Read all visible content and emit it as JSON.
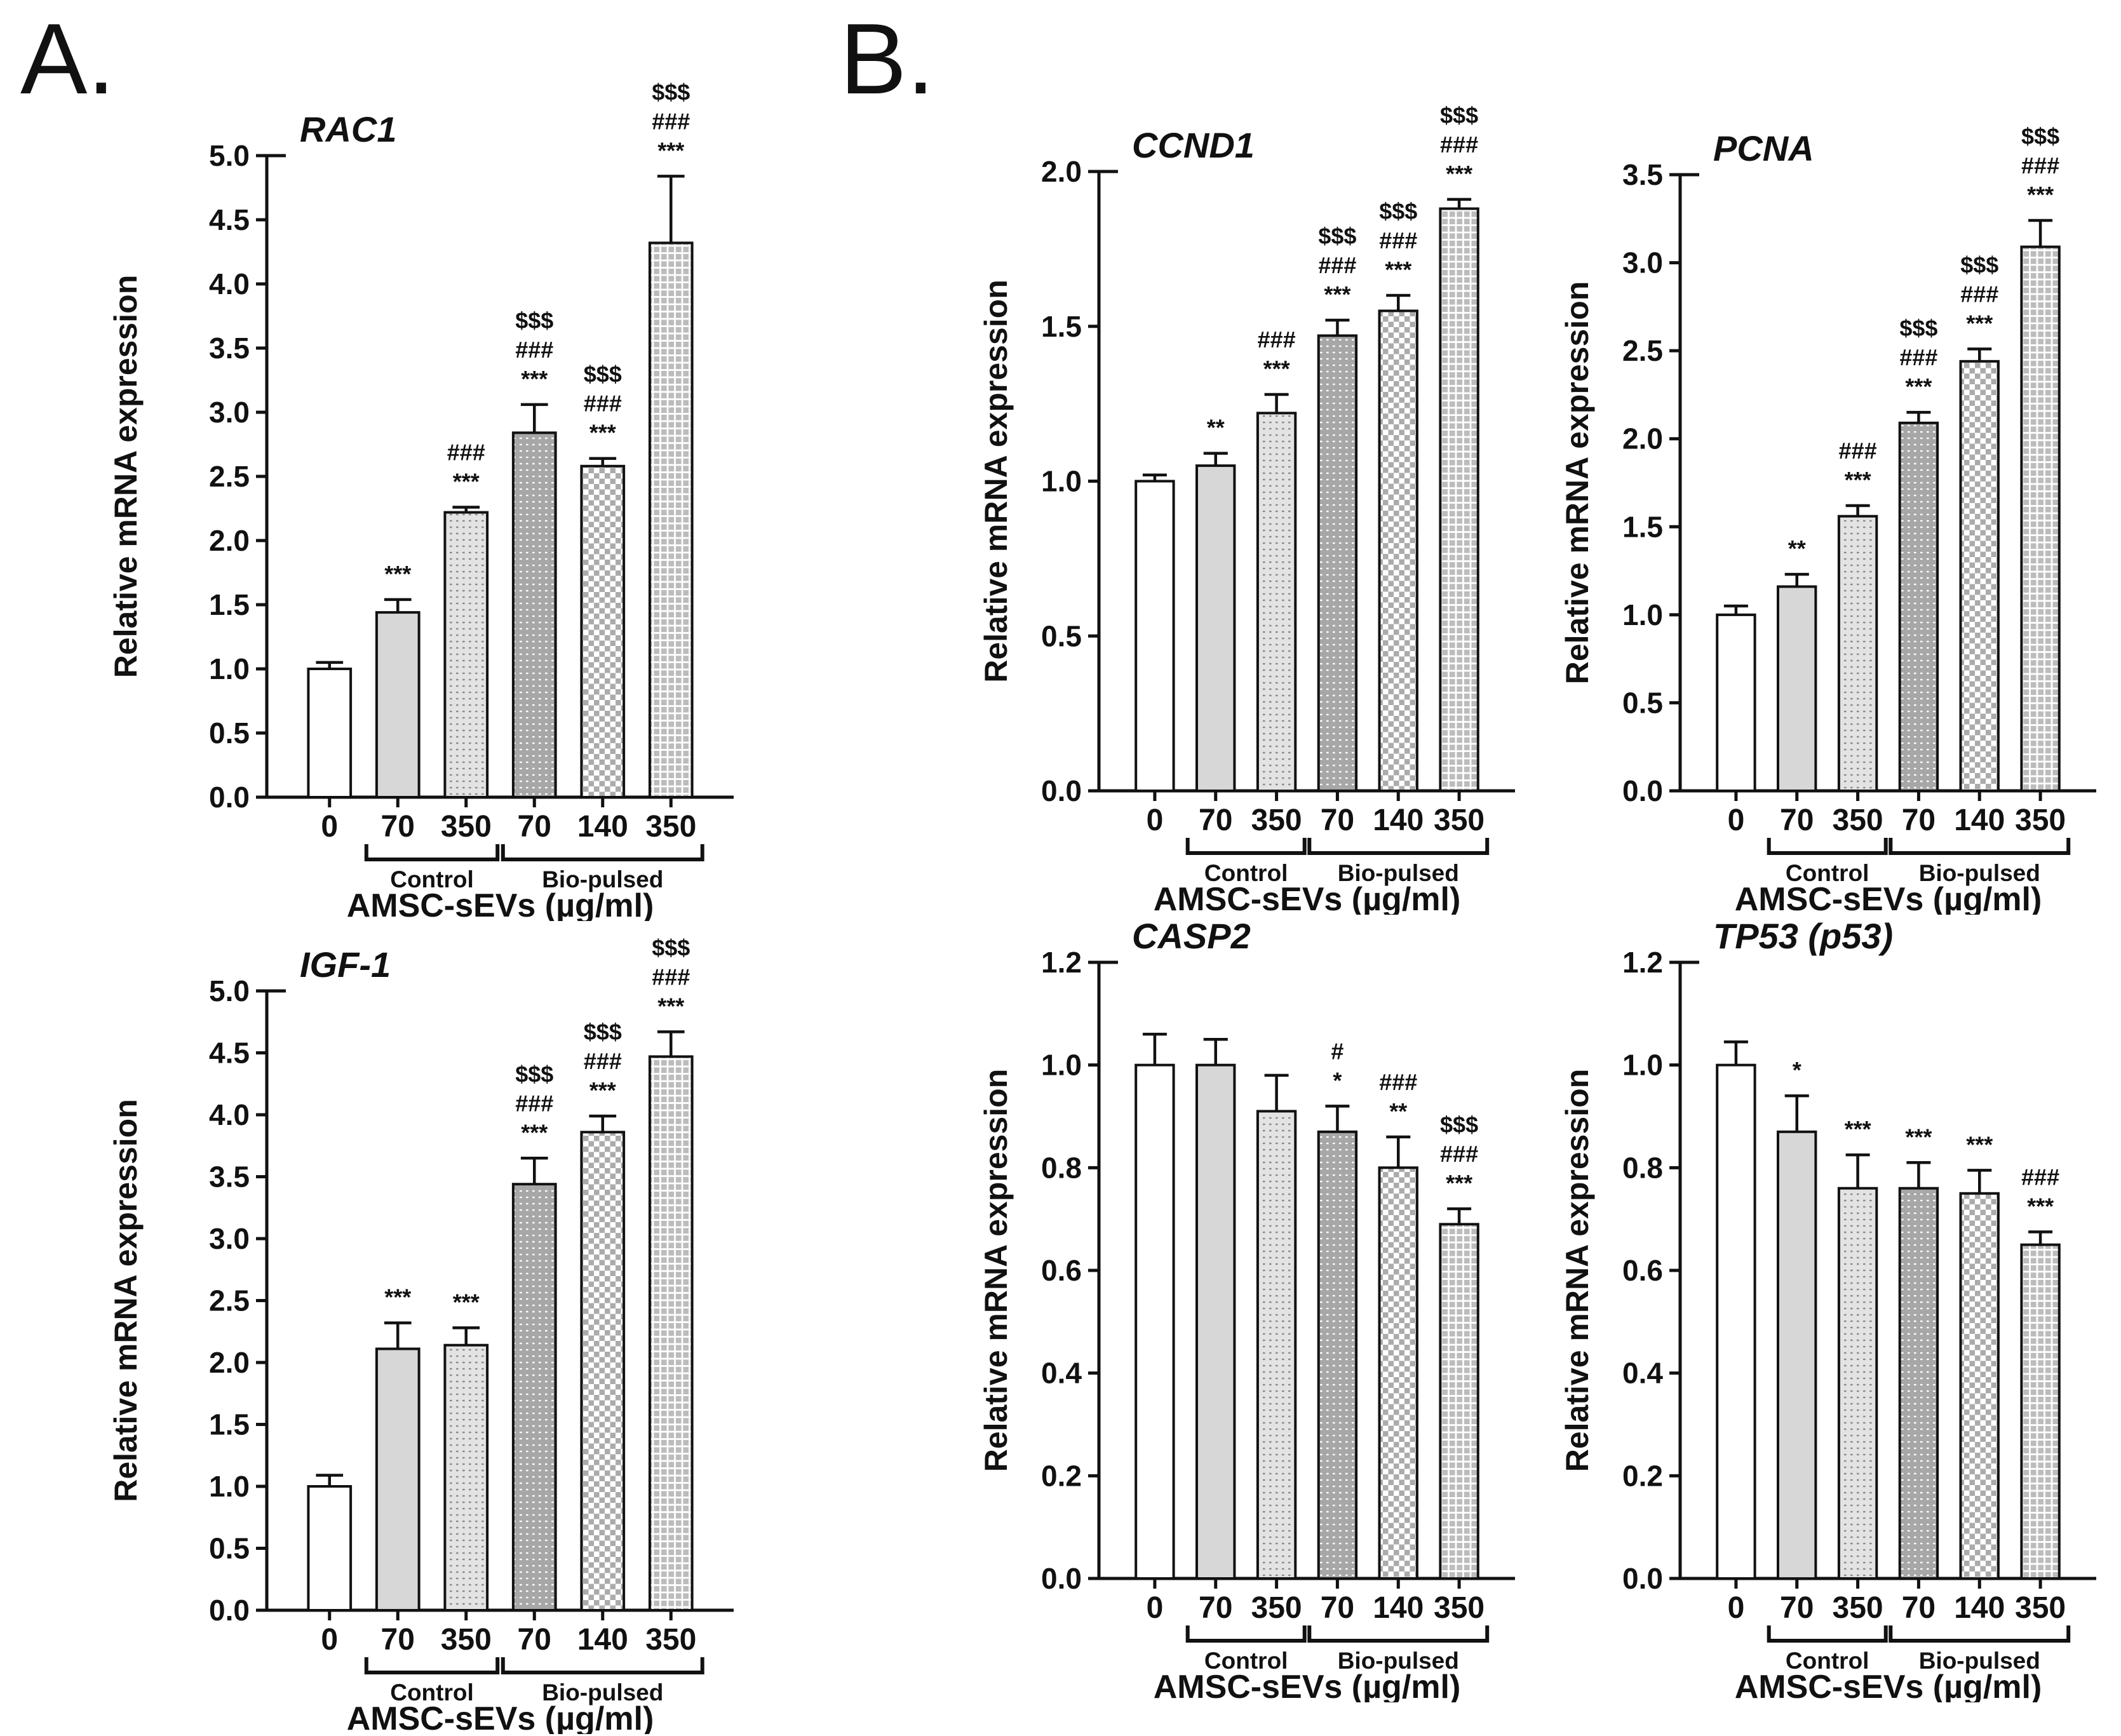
{
  "figure": {
    "panel_a_label": "A.",
    "panel_b_label": "B.",
    "ylabel": "Relative mRNA expression",
    "xlabel": "AMSC-sEVs (µg/ml)",
    "categories": [
      "0",
      "70",
      "350",
      "70",
      "140",
      "350"
    ],
    "groups": [
      {
        "label": "Control",
        "from": 1,
        "to": 2
      },
      {
        "label": "Bio-pulsed",
        "from": 3,
        "to": 5
      }
    ],
    "bar_patterns": [
      "white",
      "solid-light",
      "dots-light",
      "dots-dark",
      "checker",
      "grid"
    ],
    "colors": {
      "ink": "#111111",
      "bar_solid_light": "#d7d7d7",
      "bar_dot_light_bg": "#e3e3e3",
      "bar_dot_light_dot": "#8a8a8a",
      "bar_dot_dark_bg": "#a7a7a7",
      "bar_checker_gray": "#ababab",
      "bar_grid_gray": "#bcbcbc"
    }
  },
  "chart_data": [
    {
      "id": "rac1",
      "panel": "A",
      "type": "bar",
      "title": "RAC1",
      "ylabel": "Relative mRNA expression",
      "xlabel": "AMSC-sEVs (µg/ml)",
      "ylim": [
        0,
        5.0
      ],
      "ytick": 0.5,
      "grid": false,
      "categories": [
        "0",
        "70",
        "350",
        "70",
        "140",
        "350"
      ],
      "values": [
        1.0,
        1.44,
        2.22,
        2.84,
        2.58,
        4.32
      ],
      "errors": [
        0.05,
        0.1,
        0.04,
        0.22,
        0.06,
        0.52
      ],
      "sig": [
        [],
        [
          "***"
        ],
        [
          "###",
          "***"
        ],
        [
          "$$$",
          "###",
          "***"
        ],
        [
          "$$$",
          "###",
          "***"
        ],
        [
          "$$$",
          "###",
          "***"
        ]
      ]
    },
    {
      "id": "igf1",
      "panel": "A",
      "type": "bar",
      "title": "IGF-1",
      "ylabel": "Relative mRNA expression",
      "xlabel": "AMSC-sEVs (µg/ml)",
      "ylim": [
        0,
        5.0
      ],
      "ytick": 0.5,
      "grid": false,
      "categories": [
        "0",
        "70",
        "350",
        "70",
        "140",
        "350"
      ],
      "values": [
        1.0,
        2.11,
        2.14,
        3.44,
        3.86,
        4.47
      ],
      "errors": [
        0.09,
        0.21,
        0.14,
        0.21,
        0.13,
        0.2
      ],
      "sig": [
        [],
        [
          "***"
        ],
        [
          "***"
        ],
        [
          "$$$",
          "###",
          "***"
        ],
        [
          "$$$",
          "###",
          "***"
        ],
        [
          "$$$",
          "###",
          "***"
        ]
      ]
    },
    {
      "id": "ccnd1",
      "panel": "B",
      "type": "bar",
      "title": "CCND1",
      "ylabel": "Relative mRNA expression",
      "xlabel": "AMSC-sEVs (µg/ml)",
      "ylim": [
        0,
        2.0
      ],
      "ytick": 0.5,
      "grid": false,
      "categories": [
        "0",
        "70",
        "350",
        "70",
        "140",
        "350"
      ],
      "values": [
        1.0,
        1.05,
        1.22,
        1.47,
        1.55,
        1.88
      ],
      "errors": [
        0.02,
        0.04,
        0.06,
        0.05,
        0.05,
        0.03
      ],
      "sig": [
        [],
        [
          "**"
        ],
        [
          "###",
          "***"
        ],
        [
          "$$$",
          "###",
          "***"
        ],
        [
          "$$$",
          "###",
          "***"
        ],
        [
          "$$$",
          "###",
          "***"
        ]
      ]
    },
    {
      "id": "pcna",
      "panel": "B",
      "type": "bar",
      "title": "PCNA",
      "ylabel": "Relative mRNA expression",
      "xlabel": "AMSC-sEVs (µg/ml)",
      "ylim": [
        0,
        3.5
      ],
      "ytick": 0.5,
      "grid": false,
      "categories": [
        "0",
        "70",
        "350",
        "70",
        "140",
        "350"
      ],
      "values": [
        1.0,
        1.16,
        1.56,
        2.09,
        2.44,
        3.09
      ],
      "errors": [
        0.05,
        0.07,
        0.06,
        0.06,
        0.07,
        0.15
      ],
      "sig": [
        [],
        [
          "**"
        ],
        [
          "###",
          "***"
        ],
        [
          "$$$",
          "###",
          "***"
        ],
        [
          "$$$",
          "###",
          "***"
        ],
        [
          "$$$",
          "###",
          "***"
        ]
      ]
    },
    {
      "id": "casp2",
      "panel": "B",
      "type": "bar",
      "title": "CASP2",
      "ylabel": "Relative mRNA expression",
      "xlabel": "AMSC-sEVs (µg/ml)",
      "ylim": [
        0,
        1.2
      ],
      "ytick": 0.2,
      "grid": false,
      "categories": [
        "0",
        "70",
        "350",
        "70",
        "140",
        "350"
      ],
      "values": [
        1.0,
        1.0,
        0.91,
        0.87,
        0.8,
        0.69
      ],
      "errors": [
        0.06,
        0.05,
        0.07,
        0.05,
        0.06,
        0.03
      ],
      "sig": [
        [],
        [],
        [],
        [
          "#",
          "*"
        ],
        [
          "###",
          "**"
        ],
        [
          "$$$",
          "###",
          "***"
        ]
      ]
    },
    {
      "id": "tp53",
      "panel": "B",
      "type": "bar",
      "title": "TP53 (p53)",
      "ylabel": "Relative mRNA expression",
      "xlabel": "AMSC-sEVs (µg/ml)",
      "ylim": [
        0,
        1.2
      ],
      "ytick": 0.2,
      "grid": false,
      "categories": [
        "0",
        "70",
        "350",
        "70",
        "140",
        "350"
      ],
      "values": [
        1.0,
        0.87,
        0.76,
        0.76,
        0.75,
        0.65
      ],
      "errors": [
        0.045,
        0.07,
        0.065,
        0.05,
        0.045,
        0.025
      ],
      "sig": [
        [],
        [
          "*"
        ],
        [
          "***"
        ],
        [
          "***"
        ],
        [
          "***"
        ],
        [
          "###",
          "***"
        ]
      ]
    }
  ]
}
